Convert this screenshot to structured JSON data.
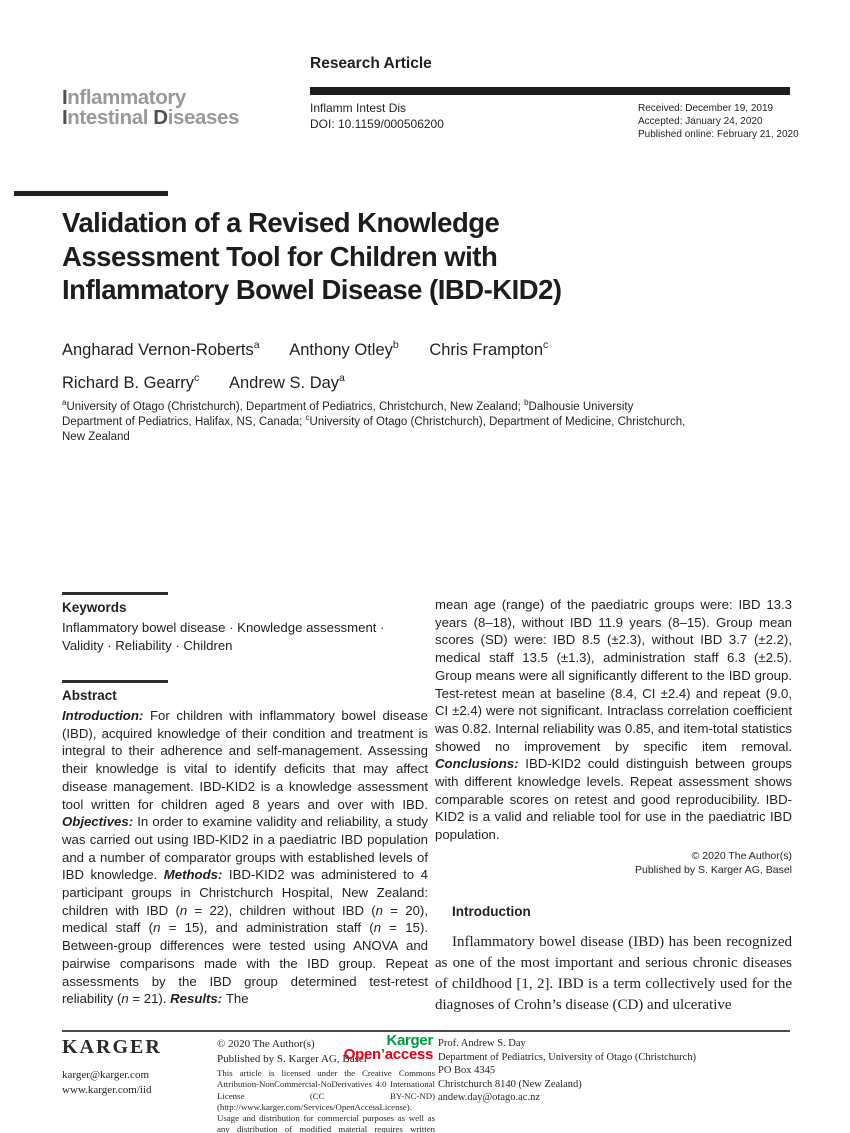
{
  "header": {
    "section_label": "Research Article",
    "logo_line1": [
      {
        "t": "I",
        "c": "ld"
      },
      {
        "t": "nflammatory",
        "c": "ll"
      }
    ],
    "logo_line2": [
      {
        "t": "I",
        "c": "ld"
      },
      {
        "t": "ntestinal ",
        "c": "ll"
      },
      {
        "t": "D",
        "c": "ld"
      },
      {
        "t": "iseases",
        "c": "ll"
      }
    ],
    "journal_abbrev": "Inflamm Intest Dis",
    "doi": "DOI: 10.1159/000506200",
    "received": "Received: December 19, 2019",
    "accepted": "Accepted: January 24, 2020",
    "published": "Published online: February 21, 2020"
  },
  "title": {
    "lines": [
      "Validation of a Revised Knowledge",
      "Assessment Tool for Children with",
      "Inflammatory Bowel Disease (IBD-KID2)"
    ]
  },
  "authors": [
    {
      "name": "Angharad Vernon-Roberts",
      "sup": "a"
    },
    {
      "name": "Anthony Otley",
      "sup": "b"
    },
    {
      "name": "Chris Frampton",
      "sup": "c"
    },
    {
      "name": "Richard B. Gearry",
      "sup": "c"
    },
    {
      "name": "Andrew S. Day",
      "sup": "a"
    }
  ],
  "affiliations": [
    {
      "t": "a",
      "s": "sup"
    },
    {
      "t": "University of Otago (Christchurch), Department of Pediatrics, Christchurch, New Zealand; "
    },
    {
      "t": "b",
      "s": "sup"
    },
    {
      "t": "Dalhousie University Department of Pediatrics, Halifax, NS, Canada; "
    },
    {
      "t": "c",
      "s": "sup"
    },
    {
      "t": "University of Otago (Christchurch), Department of Medicine, Christchurch, New Zealand"
    }
  ],
  "keywords": {
    "heading": "Keywords",
    "text": "Inflammatory bowel disease · Knowledge assessment · Validity · Reliability · Children"
  },
  "abstract": {
    "heading": "Abstract",
    "left": [
      {
        "t": "Introduction: ",
        "s": "bi"
      },
      {
        "t": "For children with inflammatory bowel disease (IBD), acquired knowledge of their condition and treatment is integral to their adherence and self-management. Assessing their knowledge is vital to identify deficits that may affect disease management. IBD-KID2 is a knowledge assessment tool written for children aged 8 years and over with IBD. "
      },
      {
        "t": "Objectives: ",
        "s": "bi"
      },
      {
        "t": "In order to examine validity and reliability, a study was carried out using IBD-KID2 in a paediatric IBD population and a number of comparator groups with established levels of IBD knowledge. "
      },
      {
        "t": "Methods: ",
        "s": "bi"
      },
      {
        "t": "IBD-KID2 was administered to 4 participant groups in Christchurch Hospital, New Zealand: children with IBD ("
      },
      {
        "t": "n",
        "s": "i"
      },
      {
        "t": " = 22), children without IBD ("
      },
      {
        "t": "n",
        "s": "i"
      },
      {
        "t": " = 20), medical staff ("
      },
      {
        "t": "n",
        "s": "i"
      },
      {
        "t": " = 15), and administration staff ("
      },
      {
        "t": "n",
        "s": "i"
      },
      {
        "t": " = 15). Between-group differences were tested using ANOVA and pairwise comparisons made with the IBD group. Repeat assessments by the IBD group determined test-retest reliability ("
      },
      {
        "t": "n",
        "s": "i"
      },
      {
        "t": " = 21). "
      },
      {
        "t": "Results: ",
        "s": "bi"
      },
      {
        "t": "The"
      }
    ],
    "right": [
      {
        "t": "mean age (range) of the paediatric groups were: IBD 13.3 years (8–18), without IBD 11.9 years (8–15). Group mean scores (SD) were: IBD 8.5 (±2.3), without IBD 3.7 (±2.2), medical staff 13.5 (±1.3), administration staff 6.3 (±2.5). Group means were all significantly different to the IBD group. Test-retest mean at baseline (8.4, CI ±2.4) and repeat (9.0, CI ±2.4) were not significant. Intraclass correlation coefficient was 0.82. Internal reliability was 0.85, and item-total statistics showed no improvement by specific item removal. "
      },
      {
        "t": "Conclusions: ",
        "s": "bi"
      },
      {
        "t": "IBD-KID2 could distinguish between groups with different knowledge levels. Repeat assessment shows comparable scores on retest and good reproducibility. IBD-KID2 is a valid and reliable tool for use in the paediatric IBD population."
      }
    ],
    "copyright1": "© 2020 The Author(s)",
    "copyright2": "Published by S. Karger AG, Basel"
  },
  "introduction": {
    "heading": "Introduction",
    "paragraph": "Inflammatory bowel disease (IBD) has been recognized as one of the most important and serious chronic diseases of childhood [1, 2]. IBD is a term collectively used for the diagnoses of Crohn’s disease (CD) and ulcerative"
  },
  "footer": {
    "karger_logo": "KARGER",
    "email": "karger@karger.com",
    "website": "www.karger.com/iid",
    "copyright1": "© 2020 The Author(s)",
    "copyright2": "Published by S. Karger AG, Basel",
    "open_access_logo": {
      "line1": [
        {
          "t": "Karger",
          "c": "oa-g"
        }
      ],
      "line2": [
        {
          "t": "Open",
          "c": "oa-r"
        },
        {
          "t": "’",
          "c": "oa-g"
        },
        {
          "t": "access",
          "c": "oa-r"
        }
      ]
    },
    "license": "This article is licensed under the Creative Commons Attribution-NonCommercial-NoDerivatives 4.0 International License (CC BY-NC-ND) (http://www.karger.com/Services/OpenAccessLicense). Usage and distribution for commercial purposes as well as any distribution of modified material requires written permission.",
    "correspondence": {
      "name": "Prof. Andrew S. Day",
      "department": "Department of Pediatrics, University of Otago (Christchurch)",
      "pobox": "PO Box 4345",
      "city": "Christchurch 8140 (New Zealand)",
      "email": "andew.day@otago.ac.nz"
    }
  }
}
